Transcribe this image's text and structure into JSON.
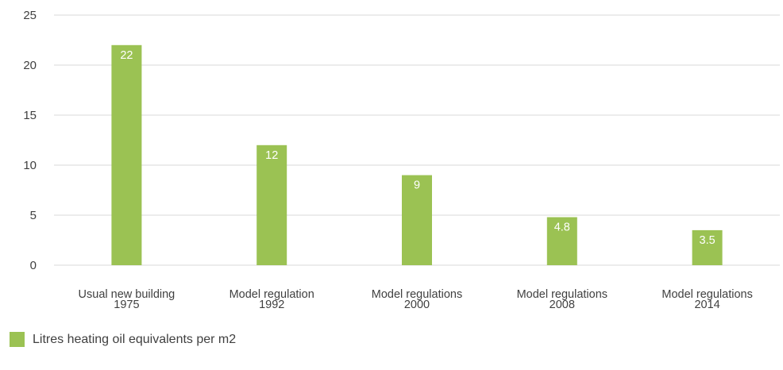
{
  "chart_data": {
    "type": "bar",
    "categories": [
      [
        "Usual new building",
        "1975"
      ],
      [
        "Model regulation",
        "1992"
      ],
      [
        "Model regulations",
        "2000"
      ],
      [
        "Model regulations",
        "2008"
      ],
      [
        "Model regulations",
        "2014"
      ]
    ],
    "series": [
      {
        "name": "Litres heating oil equivalents per m2",
        "values": [
          22,
          12,
          9,
          4.8,
          3.5
        ],
        "data_labels": [
          "22",
          "12",
          "9",
          "4.8",
          "3.5"
        ],
        "color": "#9bc253"
      }
    ],
    "yticks": [
      "0",
      "5",
      "10",
      "15",
      "20",
      "25"
    ],
    "ylim": [
      0,
      25
    ],
    "grid": true,
    "legend_position": "bottom-left"
  }
}
